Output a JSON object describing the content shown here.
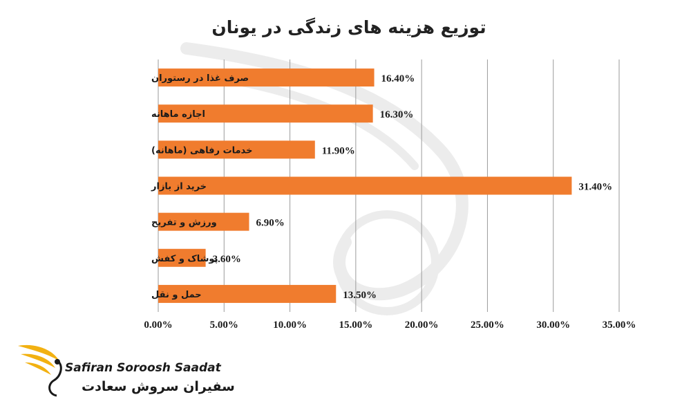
{
  "colors": {
    "bar": "#F07C2E",
    "grid": "#9a9a9a",
    "logo_gold": "#F2B111",
    "watermark": "#ececec"
  },
  "chart_data": {
    "type": "bar",
    "orientation": "horizontal",
    "title": "توزیع هزینه های زندگی در یونان",
    "categories": [
      "صرف غذا در رستوران",
      "اجازه ماهانه",
      "خدمات رفاهی (ماهانه)",
      "خرید از بازار",
      "ورزش و تفریح",
      "پوشاک و کفش",
      "حمل و نقل"
    ],
    "values": [
      16.4,
      16.3,
      11.9,
      31.4,
      6.9,
      3.6,
      13.5
    ],
    "data_labels": [
      "16.40%",
      "16.30%",
      "11.90%",
      "31.40%",
      "6.90%",
      "3.60%",
      "13.50%"
    ],
    "xlim": [
      0,
      35
    ],
    "x_ticks": [
      0,
      5,
      10,
      15,
      20,
      25,
      30,
      35
    ],
    "x_tick_labels": [
      "0.00%",
      "5.00%",
      "10.00%",
      "15.00%",
      "20.00%",
      "25.00%",
      "30.00%",
      "35.00%"
    ],
    "grid": true,
    "legend": false
  },
  "logo": {
    "name_en": "Safiran Soroosh Saadat",
    "name_fa": "سفیران سروش سعادت"
  }
}
